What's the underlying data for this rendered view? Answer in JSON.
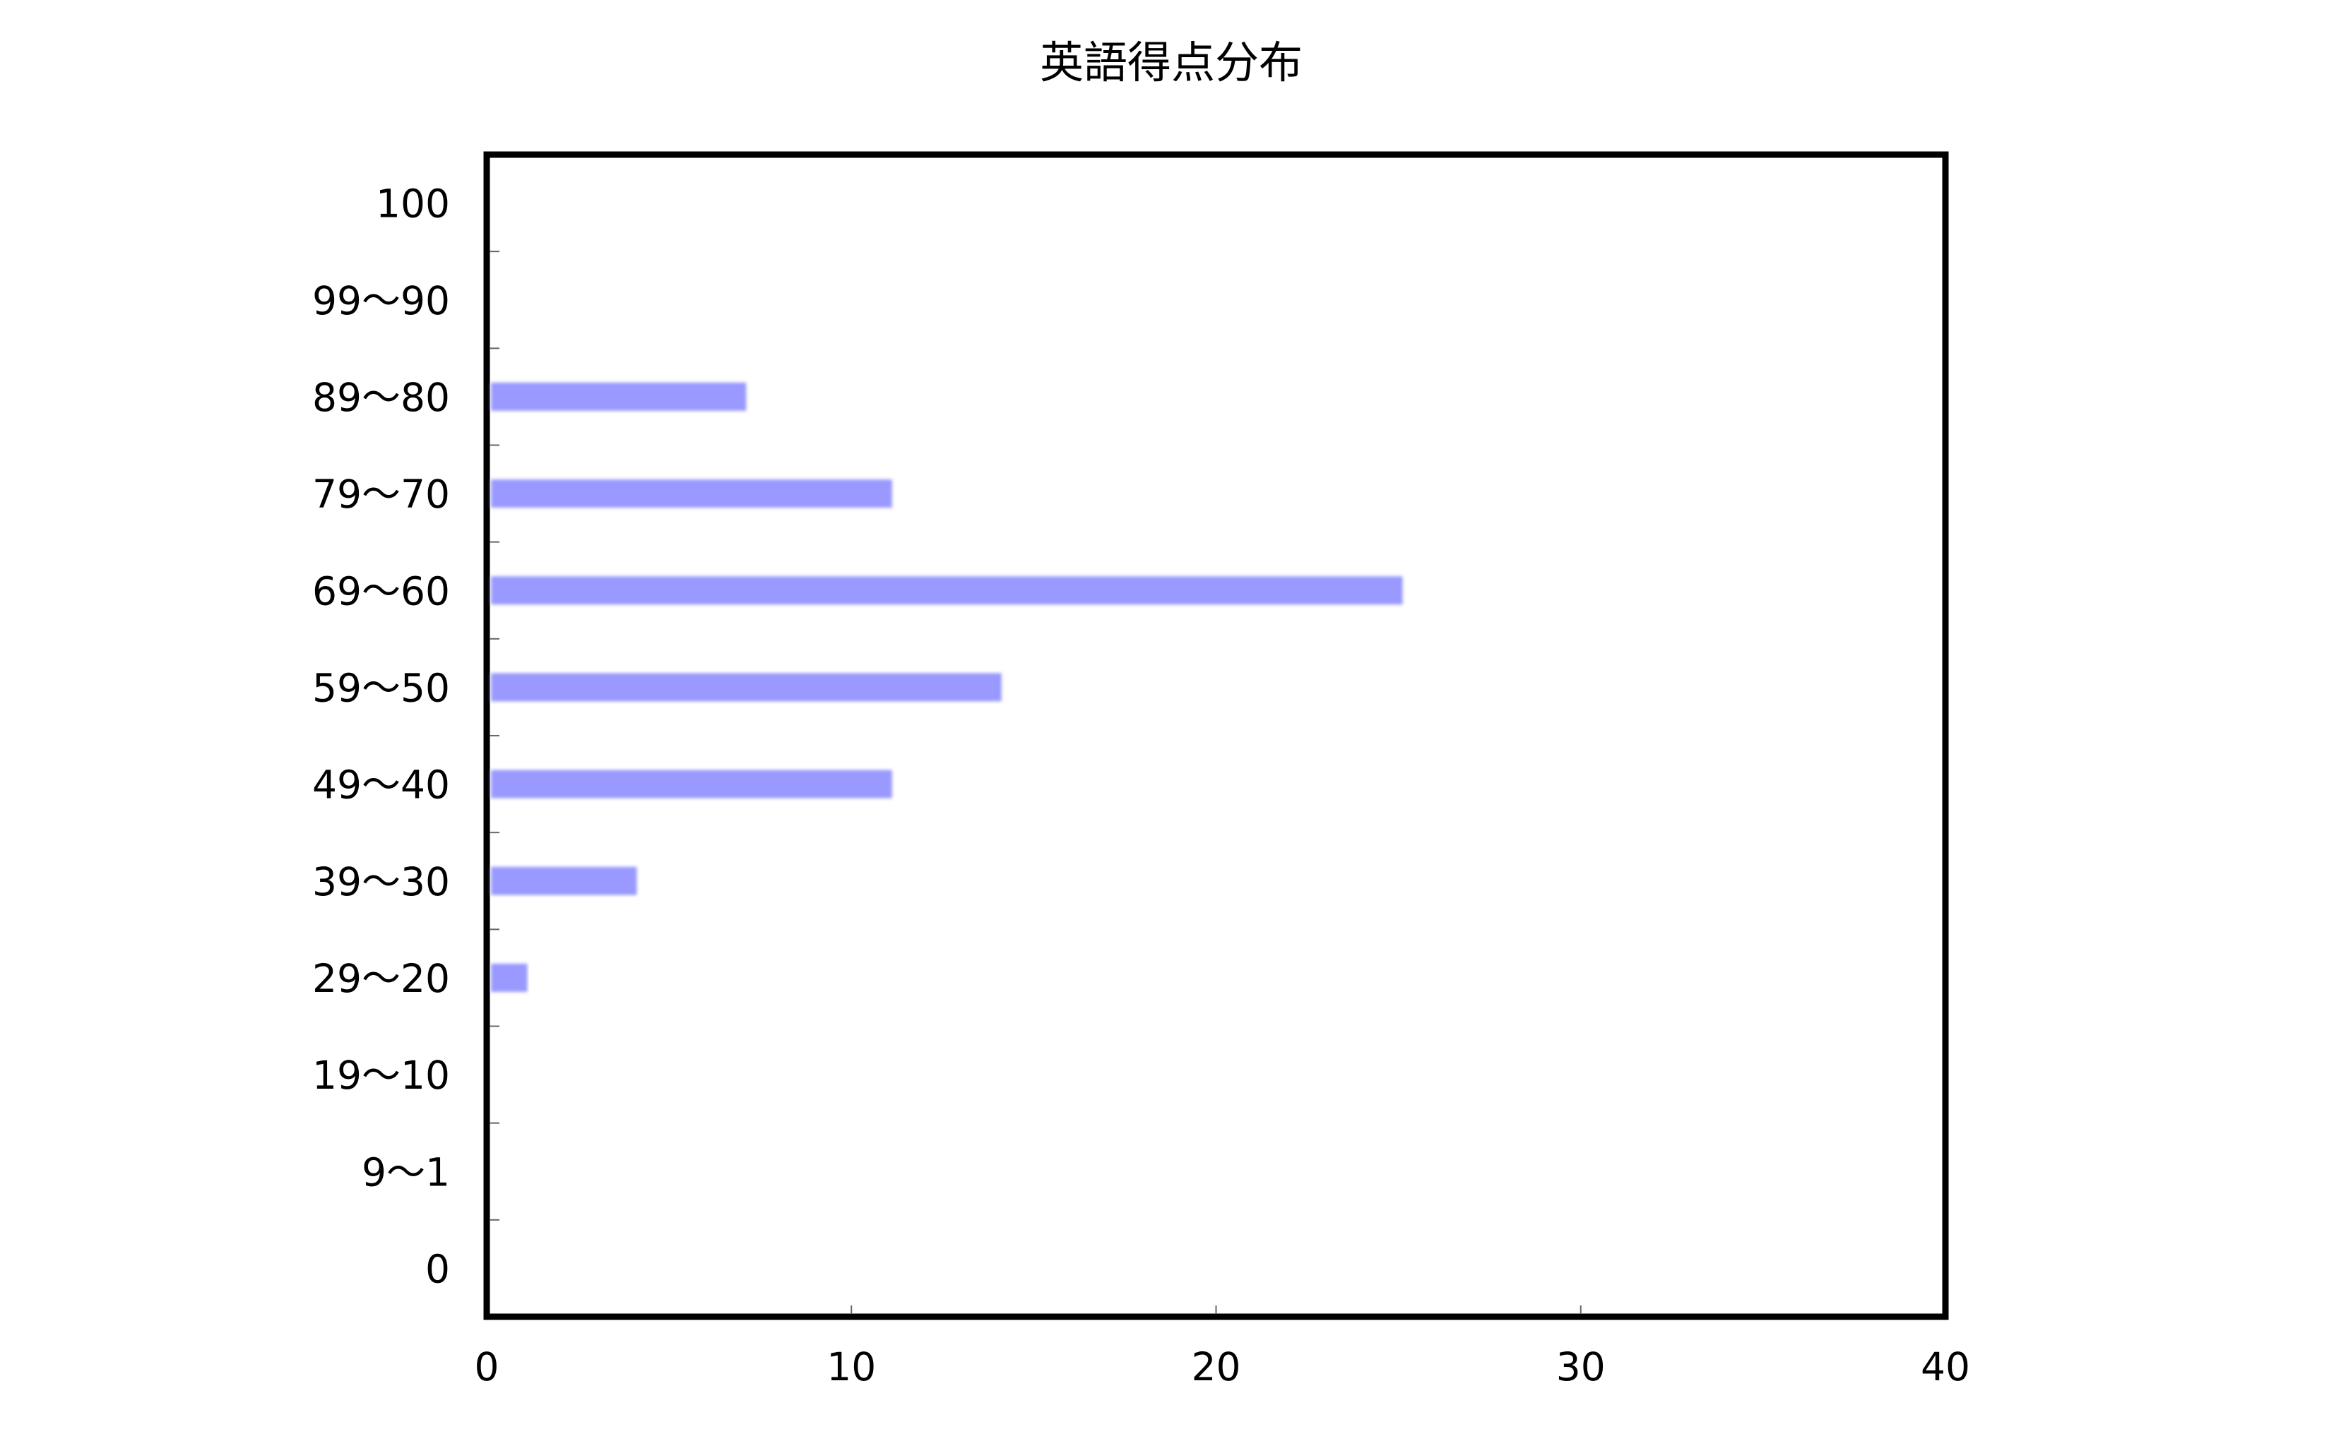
{
  "chart_data": {
    "type": "bar",
    "orientation": "horizontal",
    "title": "英語得点分布",
    "categories": [
      "100",
      "99～90",
      "89～80",
      "79～70",
      "69～60",
      "59～50",
      "49～40",
      "39～30",
      "29～20",
      "19～10",
      "9～1",
      "0"
    ],
    "values": [
      0,
      0,
      7,
      11,
      25,
      14,
      11,
      4,
      1,
      0,
      0,
      0
    ],
    "xlabel": "",
    "ylabel": "",
    "xlim": [
      0,
      40
    ],
    "x_ticks": [
      "0",
      "10",
      "20",
      "30",
      "40"
    ],
    "grid": false,
    "legend": "none",
    "bar_color": "#9999ff",
    "frame_color": "#000000"
  }
}
